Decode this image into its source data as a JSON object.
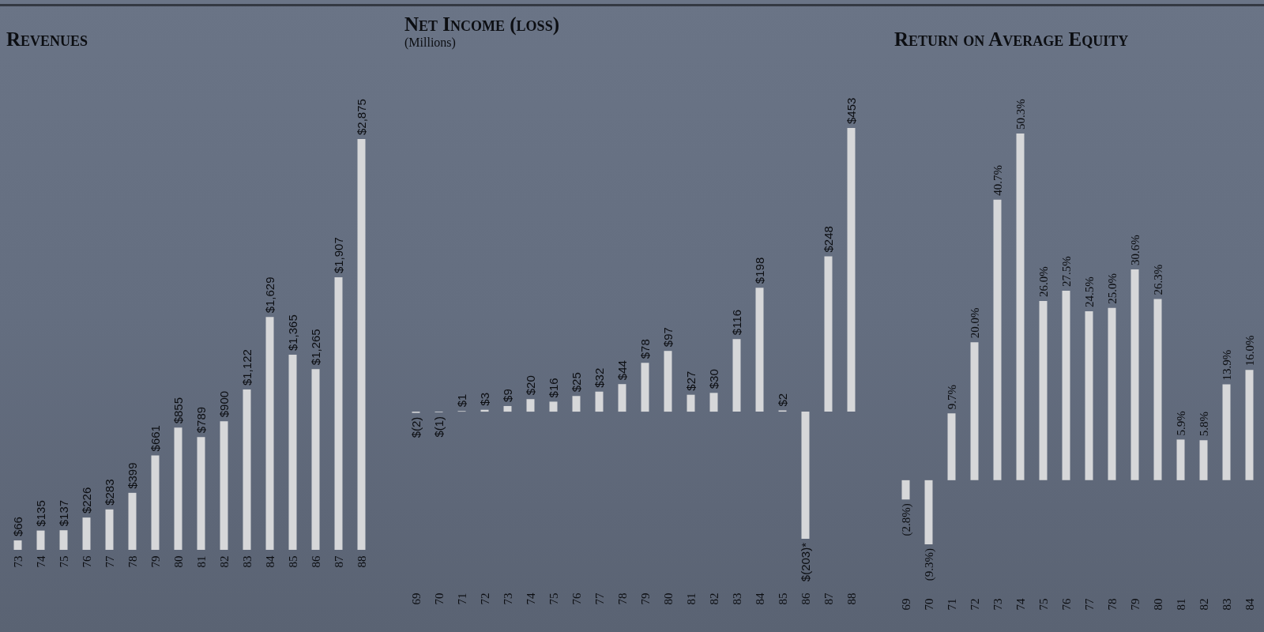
{
  "chart_data": [
    {
      "type": "bar",
      "title": "Revenues",
      "categories": [
        "73",
        "74",
        "75",
        "76",
        "77",
        "78",
        "79",
        "80",
        "81",
        "82",
        "83",
        "84",
        "85",
        "86",
        "87",
        "88"
      ],
      "values": [
        66,
        135,
        137,
        226,
        283,
        399,
        661,
        855,
        789,
        900,
        1122,
        1629,
        1365,
        1265,
        1907,
        2875
      ],
      "value_labels": [
        "$66",
        "$135",
        "$137",
        "$226",
        "$283",
        "$399",
        "$661",
        "$855",
        "$789",
        "$900",
        "$1,122",
        "$1,629",
        "$1,365",
        "$1,265",
        "$1,907",
        "$2,875"
      ],
      "color": "#d6d7d9"
    },
    {
      "type": "bar",
      "title": "Net Income (loss)",
      "subtitle": "(Millions)",
      "categories": [
        "69",
        "70",
        "71",
        "72",
        "73",
        "74",
        "75",
        "76",
        "77",
        "78",
        "79",
        "80",
        "81",
        "82",
        "83",
        "84",
        "85",
        "86",
        "87",
        "88"
      ],
      "values": [
        -2,
        -1,
        1,
        3,
        9,
        20,
        16,
        25,
        32,
        44,
        78,
        97,
        27,
        30,
        116,
        198,
        2,
        -203,
        248,
        453
      ],
      "value_labels": [
        "$(2)",
        "$(1)",
        "$1",
        "$3",
        "$9",
        "$20",
        "$16",
        "$25",
        "$32",
        "$44",
        "$78",
        "$97",
        "$27",
        "$30",
        "$116",
        "$198",
        "$2",
        "$(203)*",
        "$248",
        "$453"
      ],
      "color": "#d6d7d9"
    },
    {
      "type": "bar",
      "title": "Return on Average Equity",
      "categories": [
        "69",
        "70",
        "71",
        "72",
        "73",
        "74",
        "75",
        "76",
        "77",
        "78",
        "79",
        "80",
        "81",
        "82",
        "83",
        "84"
      ],
      "values": [
        -2.8,
        -9.3,
        9.7,
        20.0,
        40.7,
        50.3,
        26.0,
        27.5,
        24.5,
        25.0,
        30.6,
        26.3,
        5.9,
        5.8,
        13.9,
        16.0
      ],
      "value_labels": [
        "(2.8%)",
        "(9.3%)",
        "9.7%",
        "20.0%",
        "40.7%",
        "50.3%",
        "26.0%",
        "27.5%",
        "24.5%",
        "25.0%",
        "30.6%",
        "26.3%",
        "5.9%",
        "5.8%",
        "13.9%",
        "16.0%"
      ],
      "color": "#d6d7d9"
    }
  ]
}
